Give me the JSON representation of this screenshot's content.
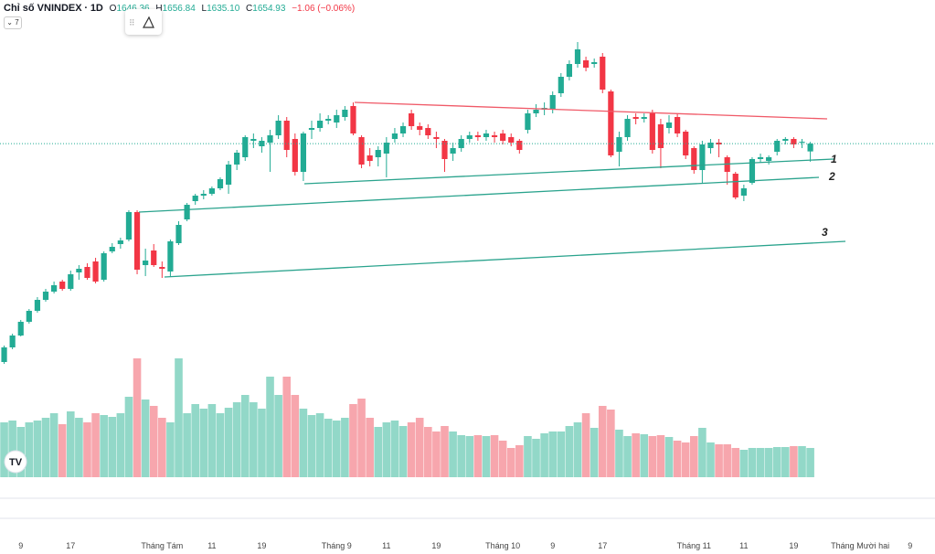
{
  "header": {
    "title": "Chỉ số VNINDEX",
    "separator": "·",
    "interval": "1D",
    "ohlc": [
      {
        "label": "O",
        "value": 1646.36
      },
      {
        "label": "H",
        "value": 1656.84
      },
      {
        "label": "L",
        "value": {
          "value": 1635.1,
          "label": "1635.10"
        }
      },
      {
        "label": "C",
        "value": 1654.93
      }
    ],
    "change": "−1.06 (−0.06%)",
    "indicator_count": 7
  },
  "chart_data": {
    "type": "candlestick",
    "open": [
      1416,
      1432,
      1445,
      1460,
      1472,
      1484,
      1493,
      1504,
      1496,
      1514,
      1520,
      1526,
      1506,
      1537,
      1545,
      1550,
      1580,
      1522,
      1538,
      1520,
      1515,
      1546,
      1572,
      1592,
      1598,
      1600,
      1606,
      1610,
      1632,
      1640,
      1658,
      1652,
      1656,
      1664,
      1680,
      1660,
      1624,
      1670,
      1672,
      1680,
      1678,
      1684,
      1696,
      1662,
      1642,
      1640,
      1644,
      1660,
      1666,
      1688,
      1674,
      1672,
      1662,
      1658,
      1644,
      1650,
      1660,
      1664,
      1662,
      1664,
      1666,
      1662,
      1658,
      1670,
      1688,
      1692,
      1692,
      1710,
      1728,
      1742,
      1746,
      1742,
      1750,
      1712,
      1646,
      1662,
      1684,
      1682,
      1688,
      1676,
      1672,
      1684,
      1668,
      1650,
      1626,
      1650,
      1656,
      1640,
      1622,
      1598,
      1612,
      1638,
      1636,
      1646,
      1658,
      1660,
      1656,
      1646.36
    ],
    "high": [
      1434,
      1447,
      1462,
      1474,
      1487,
      1496,
      1504,
      1506,
      1516,
      1522,
      1524,
      1530,
      1537,
      1546,
      1552,
      1582,
      1582,
      1540,
      1545,
      1526,
      1550,
      1570,
      1590,
      1600,
      1604,
      1608,
      1618,
      1636,
      1648,
      1664,
      1666,
      1662,
      1670,
      1686,
      1684,
      1666,
      1668,
      1680,
      1688,
      1686,
      1692,
      1696,
      1700,
      1664,
      1650,
      1652,
      1662,
      1672,
      1678,
      1692,
      1678,
      1676,
      1668,
      1660,
      1656,
      1664,
      1668,
      1668,
      1670,
      1668,
      1670,
      1666,
      1660,
      1692,
      1698,
      1700,
      1712,
      1732,
      1746,
      1766,
      1750,
      1748,
      1754,
      1714,
      1668,
      1686,
      1688,
      1688,
      1692,
      1682,
      1686,
      1688,
      1670,
      1652,
      1658,
      1660,
      1660,
      1642,
      1624,
      1610,
      1640,
      1644,
      1642,
      1660,
      1662,
      1662,
      1660,
      1656.84
    ],
    "low": [
      1414,
      1430,
      1444,
      1458,
      1470,
      1482,
      1491,
      1494,
      1494,
      1506,
      1506,
      1502,
      1504,
      1535,
      1540,
      1548,
      1512,
      1510,
      1520,
      1508,
      1510,
      1544,
      1570,
      1588,
      1594,
      1598,
      1604,
      1600,
      1626,
      1636,
      1650,
      1645,
      1624,
      1660,
      1640,
      1620,
      1614,
      1660,
      1668,
      1676,
      1672,
      1680,
      1664,
      1628,
      1630,
      1630,
      1618,
      1656,
      1662,
      1670,
      1664,
      1660,
      1650,
      1624,
      1636,
      1646,
      1656,
      1658,
      1658,
      1656,
      1654,
      1652,
      1644,
      1666,
      1684,
      1686,
      1688,
      1706,
      1724,
      1738,
      1734,
      1738,
      1710,
      1640,
      1630,
      1658,
      1676,
      1678,
      1644,
      1628,
      1666,
      1662,
      1638,
      1622,
      1612,
      1644,
      1640,
      1610,
      1594,
      1592,
      1610,
      1634,
      1632,
      1642,
      1654,
      1650,
      1650,
      1635.1
    ],
    "close": [
      1432,
      1445,
      1460,
      1472,
      1484,
      1493,
      1500,
      1496,
      1512,
      1518,
      1508,
      1504,
      1535,
      1542,
      1549,
      1580,
      1517,
      1527,
      1522,
      1518,
      1548,
      1566,
      1588,
      1598,
      1600,
      1606,
      1616,
      1632,
      1645,
      1662,
      1660,
      1658,
      1664,
      1680,
      1648,
      1624,
      1666,
      1672,
      1680,
      1682,
      1686,
      1692,
      1666,
      1632,
      1636,
      1648,
      1656,
      1666,
      1674,
      1674,
      1670,
      1664,
      1660,
      1638,
      1650,
      1660,
      1664,
      1662,
      1666,
      1662,
      1658,
      1656,
      1648,
      1688,
      1692,
      1694,
      1708,
      1728,
      1742,
      1758,
      1738,
      1744,
      1714,
      1642,
      1662,
      1682,
      1682,
      1684,
      1648,
      1650,
      1678,
      1666,
      1642,
      1626,
      1654,
      1656,
      1654,
      1624,
      1596,
      1606,
      1638,
      1640,
      1640,
      1658,
      1660,
      1654,
      1657,
      1654.93
    ],
    "volume": [
      600,
      620,
      550,
      600,
      620,
      650,
      700,
      580,
      720,
      650,
      600,
      700,
      680,
      660,
      700,
      880,
      1300,
      850,
      780,
      650,
      600,
      1300,
      700,
      800,
      750,
      800,
      700,
      760,
      820,
      900,
      820,
      750,
      1100,
      900,
      1100,
      900,
      750,
      680,
      700,
      640,
      620,
      650,
      800,
      860,
      650,
      550,
      600,
      620,
      560,
      600,
      650,
      550,
      500,
      560,
      500,
      460,
      450,
      460,
      450,
      460,
      400,
      320,
      350,
      450,
      420,
      480,
      500,
      500,
      560,
      600,
      700,
      540,
      780,
      740,
      520,
      450,
      480,
      470,
      450,
      460,
      440,
      400,
      380,
      450,
      540,
      380,
      360,
      360,
      320,
      300,
      320,
      320,
      320,
      330,
      330,
      340,
      340,
      320
    ],
    "ylim": [
      1412,
      1812
    ],
    "volume_ylim": [
      0,
      1400
    ],
    "xlim": [
      -0.5,
      112
    ],
    "xticks": [
      {
        "value": 2,
        "label": "9"
      },
      {
        "value": 8,
        "label": "17"
      },
      {
        "value": 19,
        "label": "Tháng Tám"
      },
      {
        "value": 25,
        "label": "11"
      },
      {
        "value": 31,
        "label": "19"
      },
      {
        "value": 40,
        "label": "Tháng 9"
      },
      {
        "value": 46,
        "label": "11"
      },
      {
        "value": 52,
        "label": "19"
      },
      {
        "value": 60,
        "label": "Tháng 10"
      },
      {
        "value": 66,
        "label": "9"
      },
      {
        "value": 72,
        "label": "17"
      },
      {
        "value": 83,
        "label": "Tháng 11"
      },
      {
        "value": 89,
        "label": "11"
      },
      {
        "value": 95,
        "label": "19"
      },
      {
        "value": 103,
        "label": "Tháng Mười hai"
      },
      {
        "value": 109,
        "label": "9"
      }
    ],
    "colors": {
      "up": "#22ab94",
      "down": "#f23645",
      "up_volume": "#92d8c8",
      "down_volume": "#f7a6ad"
    },
    "annotations": [
      "1",
      "2",
      "3"
    ]
  }
}
